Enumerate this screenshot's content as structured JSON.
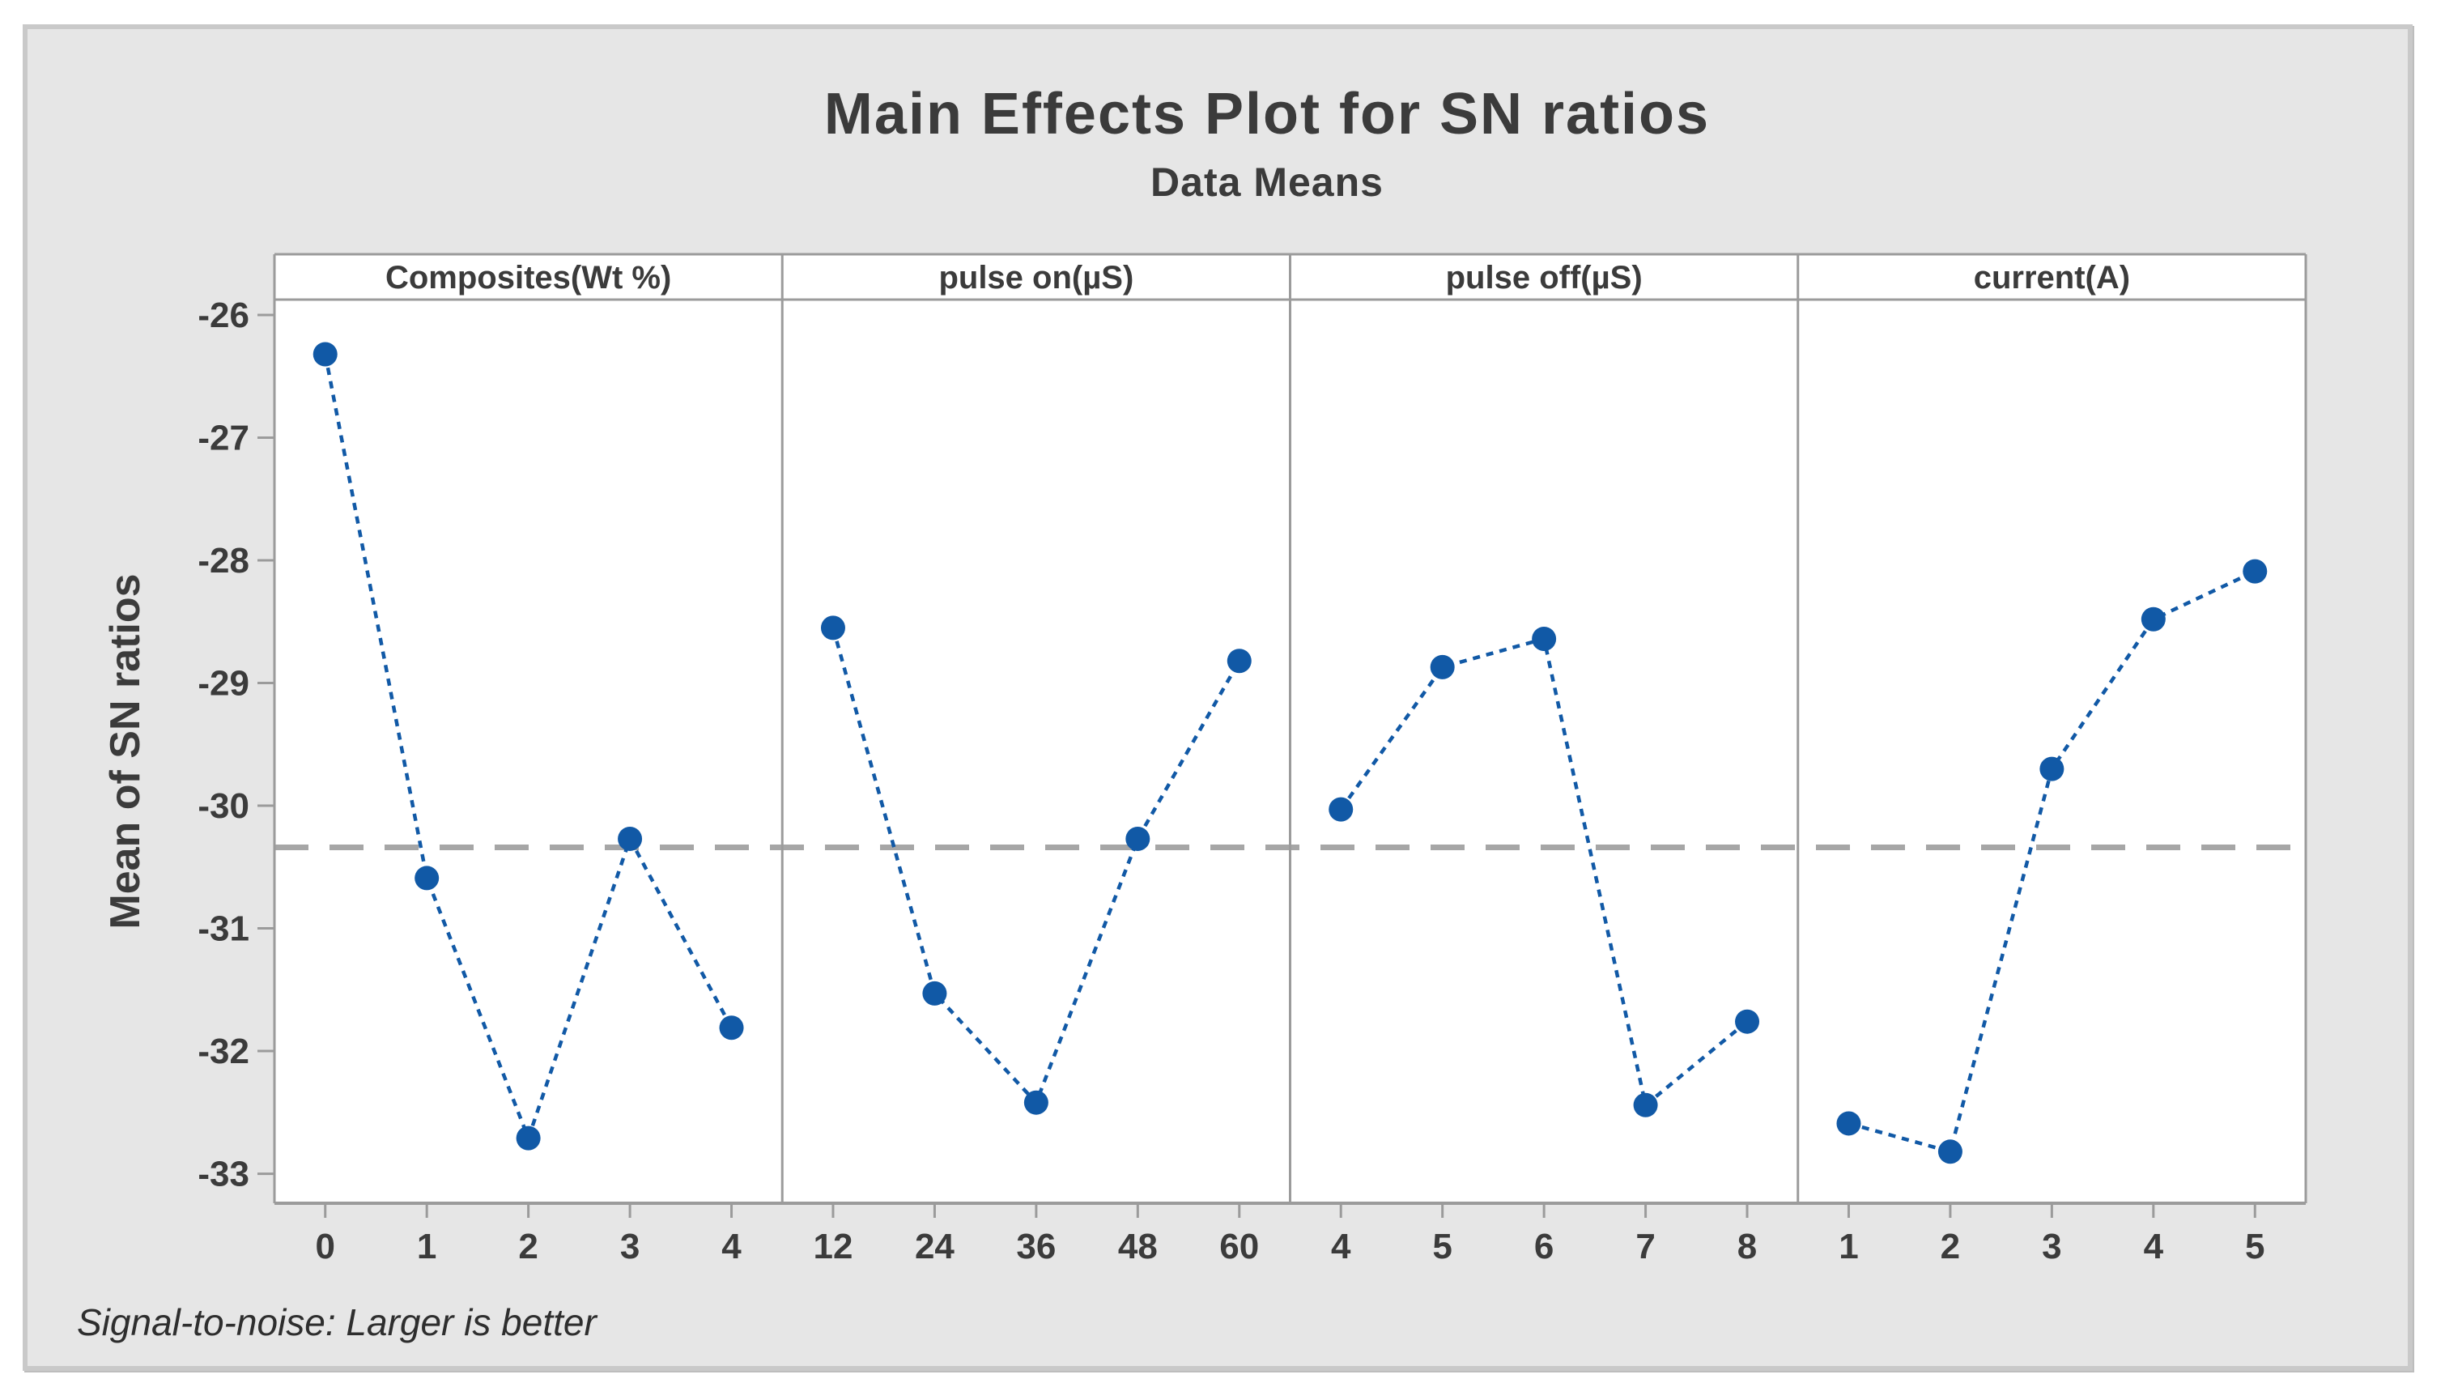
{
  "title": "Main Effects Plot for SN ratios",
  "subtitle": "Data Means",
  "ylabel": "Mean of SN ratios",
  "footer": "Signal-to-noise: Larger is better",
  "colors": {
    "series_blue": "#1159a6",
    "reference_gray": "#a6a6a6",
    "axis_gray": "#9b9b9b",
    "panel_background": "#ffffff",
    "canvas_background": "#e6e6e6",
    "text_dark": "#3b3b3b"
  },
  "chart_data": {
    "type": "line",
    "title": "Main Effects Plot for SN ratios",
    "subtitle": "Data Means",
    "ylabel": "Mean of SN ratios",
    "footnote": "Signal-to-noise: Larger is better",
    "grid": false,
    "legend": false,
    "ylim": [
      -33.3,
      -25.85
    ],
    "yticks": [
      -26,
      -27,
      -28,
      -29,
      -30,
      -31,
      -32,
      -33
    ],
    "reference_line": -30.34,
    "marker": "circle",
    "panels": [
      {
        "label": "Composites(Wt %)",
        "categories": [
          "0",
          "1",
          "2",
          "3",
          "4"
        ],
        "values": [
          -26.32,
          -30.59,
          -32.71,
          -30.27,
          -31.81
        ]
      },
      {
        "label": "pulse on(µS)",
        "categories": [
          "12",
          "24",
          "36",
          "48",
          "60"
        ],
        "values": [
          -28.55,
          -31.53,
          -32.42,
          -30.27,
          -28.82
        ]
      },
      {
        "label": "pulse off(µS)",
        "categories": [
          "4",
          "5",
          "6",
          "7",
          "8"
        ],
        "values": [
          -30.03,
          -28.87,
          -28.64,
          -32.44,
          -31.76
        ]
      },
      {
        "label": "current(A)",
        "categories": [
          "1",
          "2",
          "3",
          "4",
          "5"
        ],
        "values": [
          -32.59,
          -32.82,
          -29.7,
          -28.48,
          -28.09
        ]
      }
    ]
  }
}
